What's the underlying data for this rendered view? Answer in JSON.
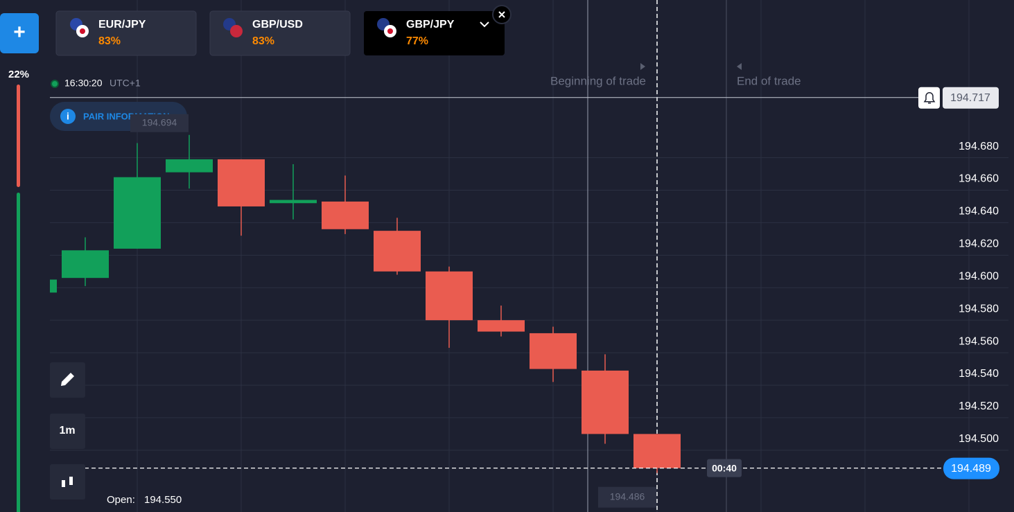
{
  "sidebar": {
    "add_button": "+",
    "sentiment": "22%"
  },
  "tabs": [
    {
      "pair": "EUR/JPY",
      "payout": "83%"
    },
    {
      "pair": "GBP/USD",
      "payout": "83%"
    },
    {
      "pair": "GBP/JPY",
      "payout": "77%"
    }
  ],
  "clock": {
    "time": "16:30:20",
    "zone": "UTC+1"
  },
  "pair_info": "PAIR INFORMATION",
  "tools": {
    "timeframe": "1m"
  },
  "open_info": {
    "label": "Open:",
    "value": "194.550"
  },
  "chart_data": {
    "type": "candlestick",
    "open": [
      194.597,
      194.606,
      194.624,
      194.671,
      194.679,
      194.652,
      194.653,
      194.635,
      194.61,
      194.58,
      194.572,
      194.549,
      194.51
    ],
    "high": [
      194.605,
      194.631,
      194.689,
      194.694,
      194.679,
      194.676,
      194.669,
      194.643,
      194.613,
      194.589,
      194.576,
      194.559,
      194.51
    ],
    "low": [
      194.597,
      194.601,
      194.624,
      194.661,
      194.632,
      194.642,
      194.633,
      194.608,
      194.563,
      194.57,
      194.542,
      194.504,
      194.486
    ],
    "close": [
      194.605,
      194.623,
      194.668,
      194.679,
      194.65,
      194.654,
      194.636,
      194.61,
      194.58,
      194.573,
      194.55,
      194.51,
      194.489
    ],
    "up_color": "#12a05a",
    "down_color": "#ea5c50",
    "ylim": [
      194.462,
      194.777
    ],
    "yticks": [
      {
        "value": 194.68,
        "label": "194.680"
      },
      {
        "value": 194.66,
        "label": "194.660"
      },
      {
        "value": 194.64,
        "label": "194.640"
      },
      {
        "value": 194.62,
        "label": "194.620"
      },
      {
        "value": 194.6,
        "label": "194.600"
      },
      {
        "value": 194.58,
        "label": "194.580"
      },
      {
        "value": 194.56,
        "label": "194.560"
      },
      {
        "value": 194.54,
        "label": "194.540"
      },
      {
        "value": 194.52,
        "label": "194.520"
      },
      {
        "value": 194.5,
        "label": "194.500"
      }
    ],
    "grid": true,
    "alert_price": {
      "value": 194.717,
      "label": "194.717"
    },
    "max_label": {
      "value": 194.694,
      "label": "194.694"
    },
    "min_label": {
      "value": 194.486,
      "label": "194.486"
    },
    "current_price_label": "194.489",
    "timer": "00:40",
    "annotations": [
      "Beginning of trade",
      "End of trade"
    ]
  }
}
